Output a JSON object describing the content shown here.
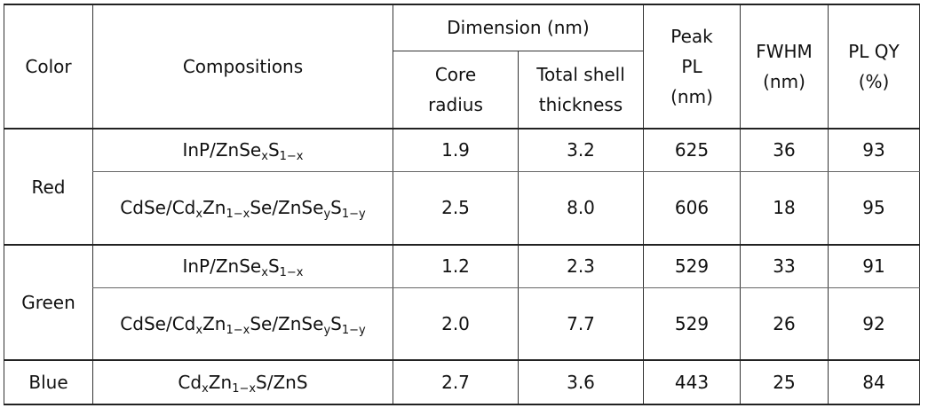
{
  "header": {
    "color": "Color",
    "compositions": "Compositions",
    "dimension": "Dimension (nm)",
    "core_radius_1": "Core",
    "core_radius_2": "radius",
    "shell_1": "Total shell",
    "shell_2": "thickness",
    "peak_1": "Peak",
    "peak_2": "PL",
    "peak_3": "(nm)",
    "fwhm_1": "FWHM",
    "fwhm_2": "(nm)",
    "qy_1": "PL QY",
    "qy_2": "(%)"
  },
  "groups": [
    {
      "color": "Red",
      "rows": [
        {
          "composition": "InP/ZnSe",
          "core": "1.9",
          "shell": "3.2",
          "peak": "625",
          "fwhm": "36",
          "qy": "93"
        },
        {
          "composition": "CdSe/Cd",
          "core": "2.5",
          "shell": "8.0",
          "peak": "606",
          "fwhm": "18",
          "qy": "95"
        }
      ]
    },
    {
      "color": "Green",
      "rows": [
        {
          "composition": "InP/ZnSe",
          "core": "1.2",
          "shell": "2.3",
          "peak": "529",
          "fwhm": "33",
          "qy": "91"
        },
        {
          "composition": "CdSe/Cd",
          "core": "2.0",
          "shell": "7.7",
          "peak": "529",
          "fwhm": "26",
          "qy": "92"
        }
      ]
    },
    {
      "color": "Blue",
      "rows": [
        {
          "composition": "Cd",
          "core": "2.7",
          "shell": "3.6",
          "peak": "443",
          "fwhm": "25",
          "qy": "84"
        }
      ]
    }
  ],
  "formula_parts": {
    "inp_a": "InP/ZnSe",
    "inp_sub1": "x",
    "inp_b": "S",
    "inp_sub2": "1−x",
    "cdse_a": "CdSe/Cd",
    "cdse_sub1": "x",
    "cdse_b": "Zn",
    "cdse_sub2": "1−x",
    "cdse_c": "Se/ZnSe",
    "cdse_sub3": "y",
    "cdse_d": "S",
    "cdse_sub4": "1−y",
    "blue_a": "Cd",
    "blue_sub1": "x",
    "blue_b": "Zn",
    "blue_sub2": "1−x",
    "blue_c": "S/ZnS"
  }
}
